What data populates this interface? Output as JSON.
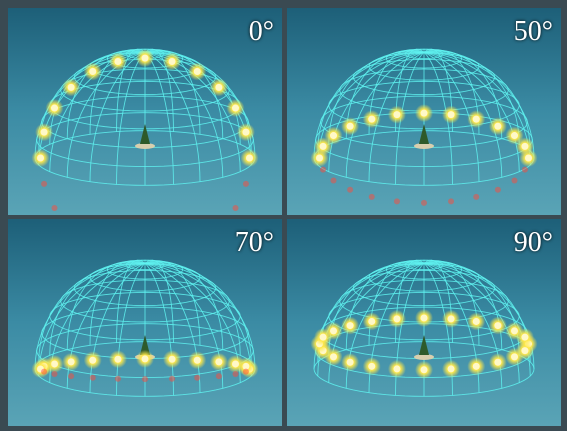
{
  "panels": [
    {
      "label": "0°"
    },
    {
      "label": "50°"
    },
    {
      "label": "70°"
    },
    {
      "label": "90°"
    }
  ]
}
